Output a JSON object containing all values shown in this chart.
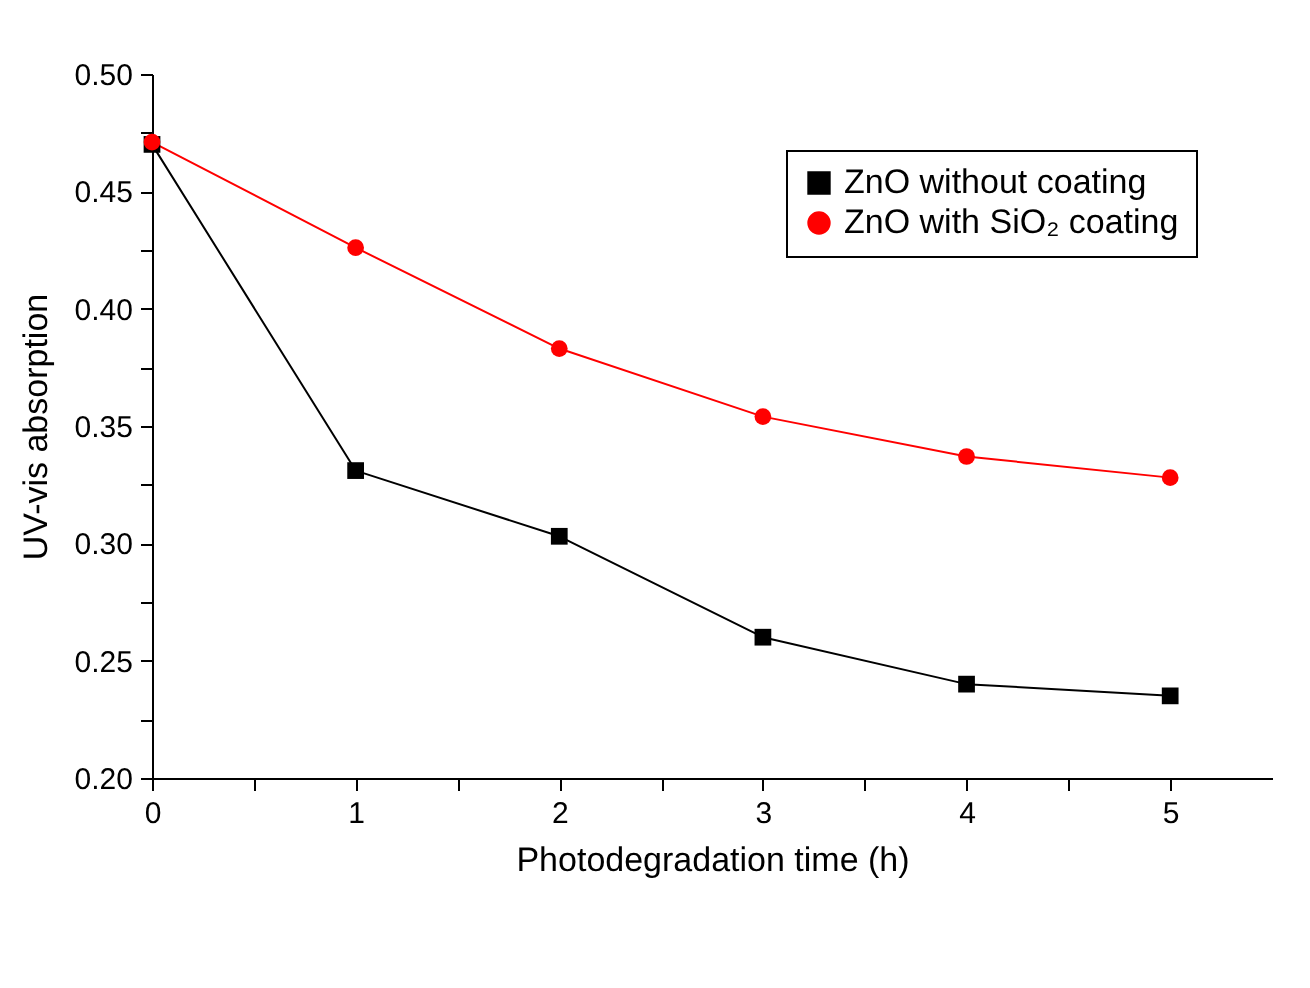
{
  "chart_data": {
    "type": "line",
    "xlabel": "Photodegradation time (h)",
    "ylabel": "UV-vis absorption",
    "x": [
      0,
      1,
      2,
      3,
      4,
      5
    ],
    "series": [
      {
        "name": "ZnO without coating",
        "color": "#000000",
        "marker": "square",
        "values": [
          0.47,
          0.331,
          0.303,
          0.26,
          0.24,
          0.235
        ]
      },
      {
        "name": "ZnO with SiO₂ coating",
        "color": "#ff0000",
        "marker": "circle",
        "values": [
          0.471,
          0.426,
          0.383,
          0.354,
          0.337,
          0.328
        ]
      }
    ],
    "xlim": [
      0,
      5.5
    ],
    "xticks": [
      0,
      {
        "value": 0.5,
        "label": null
      },
      1,
      {
        "value": 1.5,
        "label": null
      },
      2,
      {
        "value": 2.5,
        "label": null
      },
      3,
      {
        "value": 3.5,
        "label": null
      },
      4,
      {
        "value": 4.5,
        "label": null
      },
      5
    ],
    "ylim": [
      0.2,
      0.5
    ],
    "yticks": [
      {
        "value": 0.2,
        "label": "0.20"
      },
      {
        "value": 0.225,
        "label": null
      },
      {
        "value": 0.25,
        "label": "0.25"
      },
      {
        "value": 0.275,
        "label": null
      },
      {
        "value": 0.3,
        "label": "0.30"
      },
      {
        "value": 0.325,
        "label": null
      },
      {
        "value": 0.35,
        "label": "0.35"
      },
      {
        "value": 0.375,
        "label": null
      },
      {
        "value": 0.4,
        "label": "0.40"
      },
      {
        "value": 0.425,
        "label": null
      },
      {
        "value": 0.45,
        "label": "0.45"
      },
      {
        "value": 0.475,
        "label": null
      },
      {
        "value": 0.5,
        "label": "0.50"
      }
    ],
    "grid": false,
    "legend": "top right",
    "line_style": "solid"
  }
}
